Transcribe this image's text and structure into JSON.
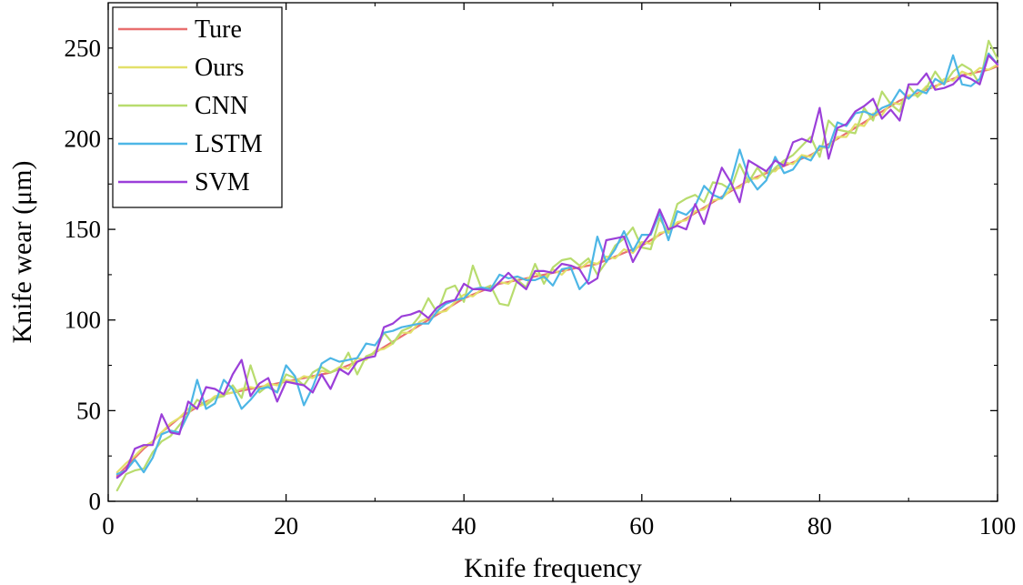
{
  "chart_data": {
    "type": "line",
    "xlabel": "Knife frequency",
    "ylabel": "Knife wear (μm)",
    "xlim": [
      0,
      100
    ],
    "ylim": [
      0,
      275
    ],
    "xticks": [
      "0",
      "20",
      "40",
      "60",
      "80",
      "100"
    ],
    "yticks": [
      "0",
      "50",
      "100",
      "150",
      "200",
      "250"
    ],
    "grid": false,
    "legend_position": "top-left",
    "x": [
      1,
      2,
      3,
      4,
      5,
      6,
      7,
      8,
      9,
      10,
      11,
      12,
      13,
      14,
      15,
      16,
      17,
      18,
      19,
      20,
      21,
      22,
      23,
      24,
      25,
      26,
      27,
      28,
      29,
      30,
      31,
      32,
      33,
      34,
      35,
      36,
      37,
      38,
      39,
      40,
      41,
      42,
      43,
      44,
      45,
      46,
      47,
      48,
      49,
      50,
      51,
      52,
      53,
      54,
      55,
      56,
      57,
      58,
      59,
      60,
      61,
      62,
      63,
      64,
      65,
      66,
      67,
      68,
      69,
      70,
      71,
      72,
      73,
      74,
      75,
      76,
      77,
      78,
      79,
      80,
      81,
      82,
      83,
      84,
      85,
      86,
      87,
      88,
      89,
      90,
      91,
      92,
      93,
      94,
      95,
      96,
      97,
      98,
      99,
      100
    ],
    "series": [
      {
        "name": "Ture",
        "color": "#e86f6f",
        "values": [
          14,
          19,
          24,
          29,
          33,
          38,
          42,
          46,
          49,
          52,
          55,
          57,
          59,
          60,
          61,
          62,
          63,
          64,
          65,
          66,
          67,
          68,
          69,
          70,
          71,
          73,
          75,
          77,
          79,
          82,
          85,
          88,
          91,
          94,
          97,
          100,
          103,
          106,
          109,
          112,
          114,
          116,
          118,
          120,
          121,
          122,
          123,
          124,
          125,
          126,
          127,
          128,
          129,
          130,
          131,
          133,
          135,
          137,
          139,
          141,
          144,
          147,
          150,
          153,
          156,
          159,
          162,
          165,
          168,
          171,
          174,
          177,
          179,
          181,
          183,
          185,
          187,
          189,
          191,
          194,
          197,
          200,
          203,
          206,
          209,
          212,
          215,
          218,
          221,
          223,
          225,
          227,
          229,
          231,
          233,
          235,
          236,
          237,
          238,
          240
        ]
      },
      {
        "name": "Ours",
        "color": "#e3e06a",
        "values": [
          16,
          21,
          25,
          30,
          33,
          38,
          43,
          46,
          51,
          52,
          54,
          58,
          59,
          60,
          62,
          63,
          62,
          65,
          64,
          67,
          66,
          69,
          68,
          72,
          71,
          74,
          73,
          79,
          78,
          83,
          84,
          87,
          93,
          93,
          99,
          101,
          104,
          105,
          110,
          114,
          113,
          117,
          117,
          121,
          120,
          124,
          122,
          126,
          123,
          128,
          125,
          130,
          128,
          132,
          131,
          135,
          134,
          139,
          137,
          143,
          142,
          148,
          149,
          154,
          155,
          160,
          161,
          166,
          167,
          172,
          173,
          178,
          178,
          182,
          182,
          187,
          186,
          191,
          190,
          195,
          195,
          201,
          201,
          208,
          207,
          214,
          213,
          220,
          219,
          224,
          224,
          229,
          228,
          233,
          232,
          237,
          235,
          239,
          238,
          241
        ]
      },
      {
        "name": "CNN",
        "color": "#b8dc6e",
        "values": [
          6,
          15,
          17,
          18,
          27,
          33,
          36,
          42,
          48,
          56,
          53,
          57,
          58,
          64,
          57,
          75,
          60,
          64,
          60,
          70,
          68,
          64,
          71,
          74,
          71,
          73,
          82,
          70,
          80,
          82,
          93,
          87,
          94,
          96,
          102,
          112,
          104,
          117,
          119,
          110,
          130,
          117,
          119,
          109,
          108,
          122,
          118,
          131,
          120,
          129,
          133,
          134,
          130,
          134,
          125,
          132,
          141,
          145,
          151,
          140,
          139,
          156,
          148,
          164,
          167,
          169,
          165,
          176,
          175,
          172,
          186,
          176,
          184,
          178,
          184,
          188,
          191,
          196,
          201,
          190,
          210,
          205,
          204,
          203,
          217,
          210,
          226,
          219,
          215,
          229,
          223,
          228,
          237,
          230,
          237,
          241,
          238,
          230,
          254,
          244
        ]
      },
      {
        "name": "LSTM",
        "color": "#4db6e6",
        "values": [
          15,
          17,
          23,
          16,
          24,
          37,
          39,
          38,
          48,
          67,
          51,
          54,
          67,
          62,
          51,
          56,
          62,
          63,
          60,
          75,
          69,
          53,
          63,
          76,
          79,
          77,
          78,
          79,
          87,
          86,
          93,
          94,
          96,
          97,
          98,
          98,
          105,
          109,
          111,
          112,
          117,
          118,
          117,
          125,
          123,
          124,
          122,
          122,
          124,
          119,
          128,
          129,
          117,
          122,
          146,
          132,
          139,
          149,
          138,
          147,
          147,
          159,
          144,
          160,
          158,
          163,
          174,
          169,
          167,
          176,
          194,
          179,
          172,
          177,
          190,
          181,
          183,
          190,
          188,
          196,
          195,
          209,
          207,
          214,
          215,
          213,
          217,
          219,
          227,
          222,
          227,
          225,
          233,
          230,
          246,
          230,
          229,
          233,
          247,
          241
        ]
      },
      {
        "name": "SVM",
        "color": "#9b3fd9",
        "values": [
          13,
          17,
          29,
          31,
          31,
          48,
          38,
          37,
          55,
          51,
          63,
          62,
          59,
          70,
          78,
          58,
          65,
          68,
          55,
          66,
          65,
          64,
          60,
          70,
          62,
          73,
          70,
          77,
          79,
          80,
          96,
          98,
          102,
          103,
          105,
          101,
          107,
          110,
          111,
          120,
          117,
          117,
          116,
          121,
          126,
          121,
          117,
          127,
          127,
          126,
          131,
          130,
          128,
          120,
          123,
          144,
          145,
          146,
          132,
          141,
          148,
          161,
          150,
          152,
          150,
          164,
          153,
          169,
          184,
          176,
          165,
          188,
          185,
          182,
          188,
          185,
          198,
          200,
          198,
          217,
          189,
          206,
          208,
          215,
          218,
          222,
          211,
          216,
          210,
          230,
          230,
          236,
          227,
          228,
          230,
          235,
          233,
          230,
          246,
          241
        ]
      }
    ]
  }
}
